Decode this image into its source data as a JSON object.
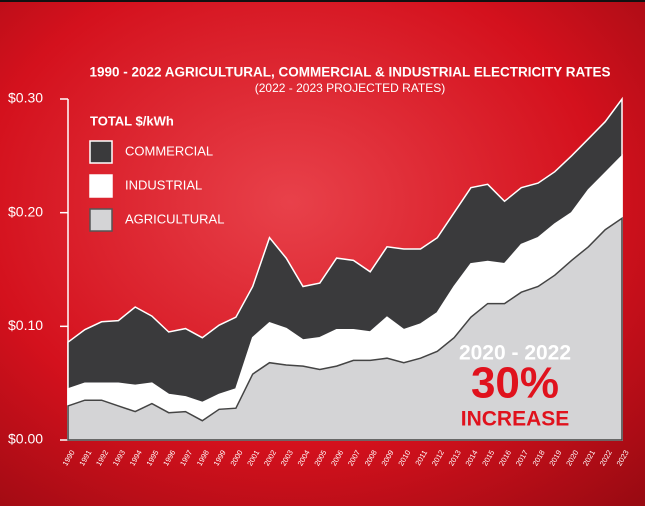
{
  "chart_data": {
    "type": "area",
    "title": "1990 - 2022 AGRICULTURAL, COMMERCIAL & INDUSTRIAL ELECTRICITY RATES",
    "subtitle": "(2022 - 2023 PROJECTED RATES)",
    "legend_title": "TOTAL $/kWh",
    "categories": [
      "1990",
      "1991",
      "1992",
      "1993",
      "1994",
      "1995",
      "1996",
      "1997",
      "1998",
      "1999",
      "2000",
      "2001",
      "2002",
      "2003",
      "2004",
      "2005",
      "2006",
      "2007",
      "2008",
      "2009",
      "2010",
      "2011",
      "2012",
      "2013",
      "2014",
      "2015",
      "2016",
      "2017",
      "2018",
      "2019",
      "2020",
      "2021",
      "2022",
      "2023"
    ],
    "series": [
      {
        "name": "COMMERCIAL",
        "color": "#3a3a3c",
        "values": [
          0.086,
          0.097,
          0.104,
          0.105,
          0.117,
          0.109,
          0.095,
          0.098,
          0.09,
          0.101,
          0.108,
          0.135,
          0.178,
          0.16,
          0.135,
          0.138,
          0.16,
          0.158,
          0.148,
          0.17,
          0.168,
          0.168,
          0.178,
          0.2,
          0.222,
          0.225,
          0.21,
          0.222,
          0.226,
          0.236,
          0.25,
          0.265,
          0.28,
          0.3
        ]
      },
      {
        "name": "INDUSTRIAL",
        "color": "#ffffff",
        "values": [
          0.045,
          0.05,
          0.05,
          0.05,
          0.048,
          0.05,
          0.04,
          0.038,
          0.033,
          0.04,
          0.045,
          0.09,
          0.103,
          0.098,
          0.088,
          0.09,
          0.097,
          0.097,
          0.095,
          0.108,
          0.097,
          0.102,
          0.112,
          0.135,
          0.155,
          0.157,
          0.155,
          0.172,
          0.178,
          0.19,
          0.2,
          0.22,
          0.235,
          0.25
        ]
      },
      {
        "name": "AGRICULTURAL",
        "color": "#d4d4d6",
        "values": [
          0.03,
          0.035,
          0.035,
          0.03,
          0.025,
          0.032,
          0.024,
          0.025,
          0.017,
          0.027,
          0.028,
          0.058,
          0.068,
          0.066,
          0.065,
          0.062,
          0.065,
          0.07,
          0.07,
          0.072,
          0.068,
          0.072,
          0.078,
          0.09,
          0.108,
          0.12,
          0.12,
          0.13,
          0.135,
          0.145,
          0.158,
          0.17,
          0.185,
          0.195
        ]
      }
    ],
    "ylim": [
      0,
      0.3
    ],
    "yticks": [
      {
        "value": 0,
        "label": "$0.00"
      },
      {
        "value": 0.1,
        "label": "$0.10"
      },
      {
        "value": 0.2,
        "label": "$0.20"
      },
      {
        "value": 0.3,
        "label": "$0.30"
      }
    ],
    "annotation": {
      "range": "2020 - 2022",
      "percent": "30%",
      "text": "INCREASE"
    }
  }
}
